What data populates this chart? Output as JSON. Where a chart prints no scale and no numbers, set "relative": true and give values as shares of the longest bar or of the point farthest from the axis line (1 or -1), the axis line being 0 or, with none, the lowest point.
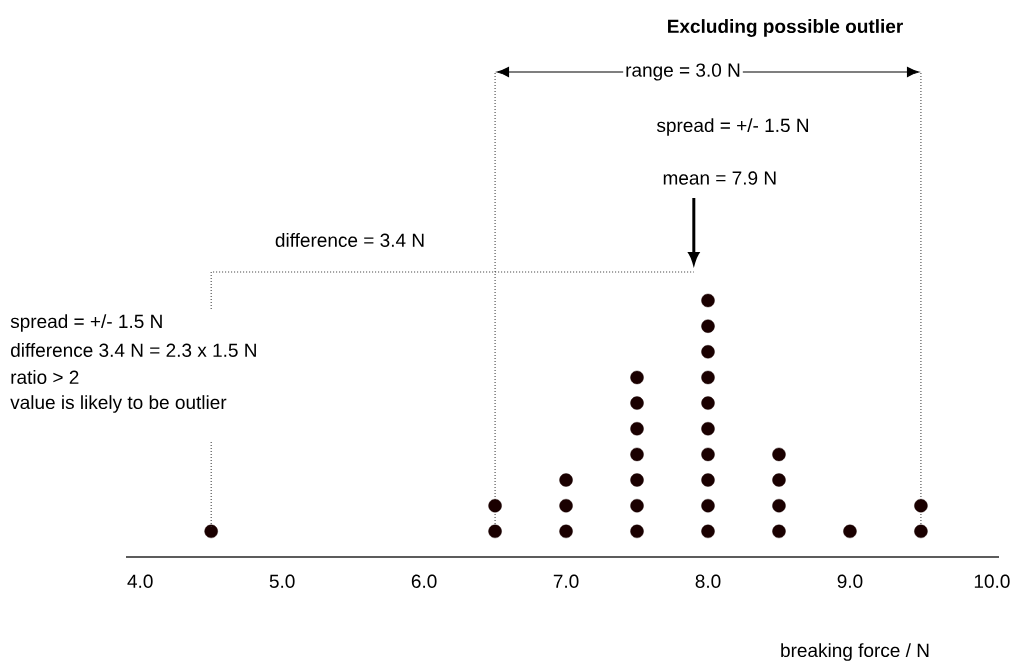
{
  "chart_data": {
    "type": "scatter",
    "title": "Excluding possible outlier",
    "xlabel": "breaking force / N",
    "relative": true,
    "marker": "circle",
    "ref_lines": [
      {
        "axis": "x",
        "value": 6.5,
        "line_style": "dotted"
      },
      {
        "axis": "x",
        "value": 9.5,
        "line_style": "dotted"
      }
    ],
    "xlim": [
      3.9,
      10.05
    ],
    "xticks": [
      {
        "value": 4,
        "label": "4.0"
      },
      {
        "value": 5,
        "label": "5.0"
      },
      {
        "value": 6,
        "label": "6.0"
      },
      {
        "value": 7,
        "label": "7.0"
      },
      {
        "value": 8,
        "label": "8.0"
      },
      {
        "value": 9,
        "label": "9.0"
      },
      {
        "value": 10,
        "label": "10.0"
      }
    ],
    "series": [
      {
        "color": "#1a0000",
        "x": [
          4.5
        ],
        "values": [
          0.09
        ]
      },
      {
        "color": "#1a0000",
        "x": [
          6.5,
          6.5,
          7.0,
          7.0,
          7.0,
          7.5,
          7.5,
          7.5,
          7.5,
          7.5,
          7.5,
          7.5,
          8.0,
          8.0,
          8.0,
          8.0,
          8.0,
          8.0,
          8.0,
          8.0,
          8.0,
          8.0,
          8.5,
          8.5,
          8.5,
          8.5,
          9.0,
          9.5,
          9.5
        ],
        "values": [
          0.09,
          0.18,
          0.09,
          0.18,
          0.27,
          0.09,
          0.18,
          0.27,
          0.36,
          0.45,
          0.54,
          0.63,
          0.09,
          0.18,
          0.27,
          0.36,
          0.45,
          0.54,
          0.63,
          0.72,
          0.81,
          0.9,
          0.09,
          0.18,
          0.27,
          0.36,
          0.09,
          0.09,
          0.18
        ]
      },
      {
        "type": "line",
        "line_style": "dotted",
        "marker": "none",
        "color": "#333333",
        "x": [
          4.5,
          4.5,
          7.9
        ],
        "values": [
          0.87,
          1.0,
          1.0
        ]
      }
    ],
    "annotations": [
      "range = 3.0 N",
      "spread = +/- 1.5 N",
      "mean = 7.9 N",
      "difference = 3.4 N",
      "spread = +/- 1.5 N",
      "difference  3.4 N = 2.3 x 1.5 N",
      "ratio > 2",
      "value is likely to be outlier"
    ]
  }
}
